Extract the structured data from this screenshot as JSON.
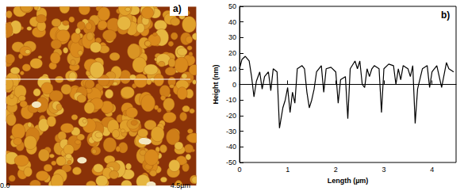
{
  "chart_data": {
    "type": "line",
    "x": [
      0,
      0.05,
      0.12,
      0.2,
      0.25,
      0.3,
      0.35,
      0.42,
      0.47,
      0.52,
      0.6,
      0.65,
      0.7,
      0.78,
      0.83,
      0.9,
      0.95,
      1.0,
      1.05,
      1.1,
      1.15,
      1.2,
      1.3,
      1.35,
      1.4,
      1.45,
      1.5,
      1.55,
      1.6,
      1.7,
      1.75,
      1.8,
      1.9,
      2.0,
      2.05,
      2.1,
      2.2,
      2.25,
      2.3,
      2.4,
      2.45,
      2.5,
      2.55,
      2.6,
      2.65,
      2.7,
      2.75,
      2.8,
      2.9,
      2.95,
      3.0,
      3.1,
      3.2,
      3.25,
      3.3,
      3.35,
      3.4,
      3.5,
      3.55,
      3.6,
      3.65,
      3.7,
      3.8,
      3.9,
      3.95,
      4.0,
      4.1,
      4.2,
      4.3,
      4.35,
      4.45
    ],
    "values": [
      10,
      16,
      18,
      15,
      5,
      -8,
      2,
      8,
      -3,
      5,
      8,
      -4,
      10,
      8,
      -28,
      -15,
      -10,
      -2,
      -18,
      -5,
      -12,
      10,
      12,
      10,
      -5,
      -15,
      -10,
      -3,
      8,
      12,
      -5,
      10,
      11,
      8,
      -12,
      3,
      5,
      -22,
      10,
      15,
      10,
      15,
      0,
      -2,
      10,
      5,
      10,
      12,
      10,
      -18,
      10,
      13,
      12,
      0,
      10,
      3,
      12,
      10,
      5,
      12,
      -25,
      -3,
      10,
      12,
      -2,
      8,
      12,
      -2,
      14,
      10,
      8
    ],
    "color": "#000000",
    "xlabel": "Length (µm)",
    "ylabel": "Height (nm)",
    "xlim": [
      0,
      4.5
    ],
    "ylim": [
      -50,
      50
    ],
    "xticks": [
      0,
      1,
      2,
      3,
      4
    ],
    "yticks": [
      -50,
      -40,
      -30,
      -20,
      -10,
      0,
      10,
      20,
      30,
      40,
      50
    ],
    "grid": false,
    "annotations": {
      "panel_a": "a)",
      "panel_b": "b)",
      "scale_start": "0.0",
      "scale_end": "4.5µm"
    }
  }
}
